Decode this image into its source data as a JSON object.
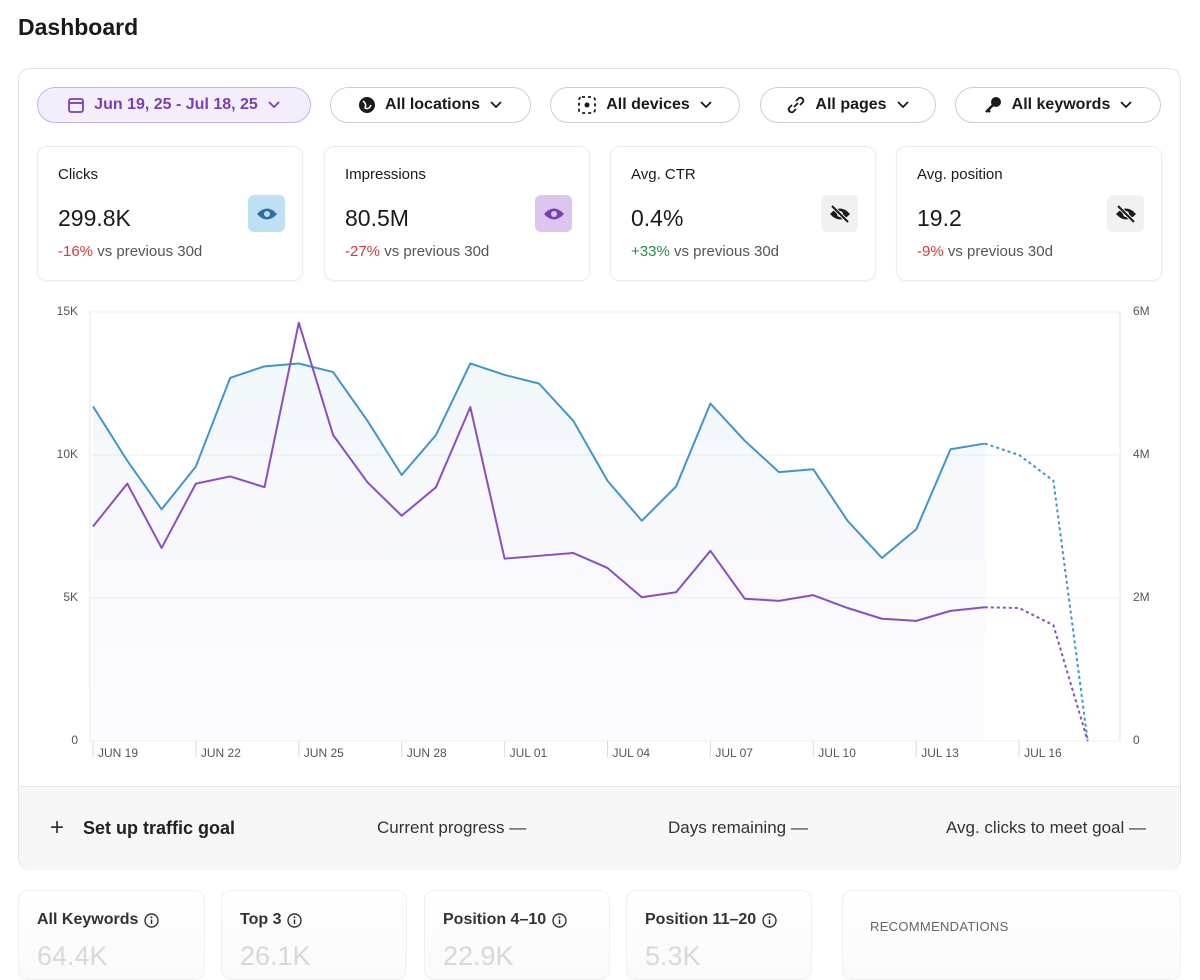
{
  "header": {
    "title": "Dashboard"
  },
  "filters": [
    "Jun 19, 25 - Jul 18, 25",
    "All locations",
    "All devices",
    "All pages",
    "All keywords"
  ],
  "metrics": [
    {
      "label": "Clicks",
      "value": "299.8K",
      "change": "-16%",
      "comparison": "vs previous 30d"
    },
    {
      "label": "Impressions",
      "value": "80.5M",
      "change": "-27%",
      "comparison": "vs previous 30d"
    },
    {
      "label": "Avg. CTR",
      "value": "0.4%",
      "change": "+33%",
      "comparison": "vs previous 30d"
    },
    {
      "label": "Avg. position",
      "value": "19.2",
      "change": "-9%",
      "comparison": "vs previous 30d"
    }
  ],
  "chart_data": {
    "type": "line",
    "categories": [
      "JUN 19",
      null,
      null,
      "JUN 22",
      null,
      null,
      "JUN 25",
      null,
      null,
      "JUN 28",
      null,
      null,
      "JUL 01",
      null,
      null,
      "JUL 04",
      null,
      null,
      "JUL 07",
      null,
      null,
      "JUL 10",
      null,
      null,
      "JUL 13",
      null,
      null,
      "JUL 16",
      null,
      null
    ],
    "series": [
      {
        "color": "#4196c8",
        "axis": "y",
        "values": [
          11700,
          9800,
          8100,
          9600,
          12700,
          13100,
          13200,
          12900,
          11200,
          9300,
          10700,
          13200,
          12800,
          12500,
          11200,
          9100,
          7700,
          8900,
          11800,
          10500,
          9400,
          9500,
          7700,
          6400,
          7400,
          10200,
          10400,
          10000,
          9100,
          0
        ]
      },
      {
        "color": "#8a4fbf",
        "axis": "y2",
        "values": [
          3000000,
          3600000,
          2700000,
          3600000,
          3700000,
          3550000,
          5850000,
          4280000,
          3620000,
          3150000,
          3550000,
          4670000,
          2550000,
          2590000,
          2630000,
          2420000,
          2010000,
          2080000,
          2660000,
          1990000,
          1960000,
          2040000,
          1860000,
          1710000,
          1680000,
          1820000,
          1870000,
          1860000,
          1620000,
          0
        ]
      }
    ],
    "dashed_from_index": 26,
    "ylim": [
      0,
      15000
    ],
    "yticks": [
      0,
      {
        "value": 5000,
        "label": "5K"
      },
      {
        "value": 10000,
        "label": "10K"
      },
      {
        "value": 15000,
        "label": "15K"
      }
    ],
    "y2lim": [
      0,
      6000000
    ],
    "y2ticks": [
      0,
      {
        "value": 2000000,
        "label": "2M"
      },
      {
        "value": 4000000,
        "label": "4M"
      },
      {
        "value": 6000000,
        "label": "6M"
      }
    ],
    "grid": true
  },
  "goal": {
    "action": "Set up traffic goal",
    "stats": [
      {
        "label": "Current progress",
        "value": "—"
      },
      {
        "label": "Days remaining",
        "value": "—"
      },
      {
        "label": "Avg. clicks to meet goal",
        "value": "—"
      }
    ]
  },
  "keyword_cards": [
    {
      "label": "All Keywords",
      "value": "64.4K"
    },
    {
      "label": "Top 3",
      "value": "26.1K"
    },
    {
      "label": "Position 4–10",
      "value": "22.9K"
    },
    {
      "label": "Position 11–20",
      "value": "5.3K"
    }
  ],
  "recommendations": {
    "title": "RECOMMENDATIONS"
  }
}
